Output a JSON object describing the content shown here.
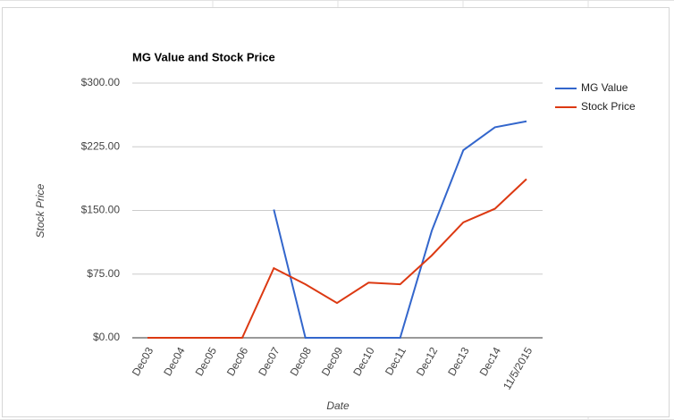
{
  "chart_data": {
    "type": "line",
    "title": "MG Value and Stock Price",
    "x_label": "Date",
    "y_label": "Stock Price",
    "categories": [
      "Dec03",
      "Dec04",
      "Dec05",
      "Dec06",
      "Dec07",
      "Dec08",
      "Dec09",
      "Dec10",
      "Dec11",
      "Dec12",
      "Dec13",
      "Dec14",
      "11/5/2015"
    ],
    "series": [
      {
        "name": "MG Value",
        "color": "#3366cc",
        "values": [
          null,
          null,
          null,
          null,
          151,
          0,
          0,
          0,
          0,
          126,
          221,
          248,
          255
        ]
      },
      {
        "name": "Stock Price",
        "color": "#dc3912",
        "values": [
          0,
          0,
          0,
          0,
          82,
          63,
          41,
          65,
          63,
          97,
          136,
          152,
          187
        ]
      }
    ],
    "ylim": [
      0,
      300
    ],
    "yticks": [
      {
        "value": 0,
        "label": "$0.00"
      },
      {
        "value": 75,
        "label": "$75.00"
      },
      {
        "value": 150,
        "label": "$150.00"
      },
      {
        "value": 225,
        "label": "$225.00"
      },
      {
        "value": 300,
        "label": "$300.00"
      }
    ],
    "grid": true,
    "legend": "right"
  }
}
